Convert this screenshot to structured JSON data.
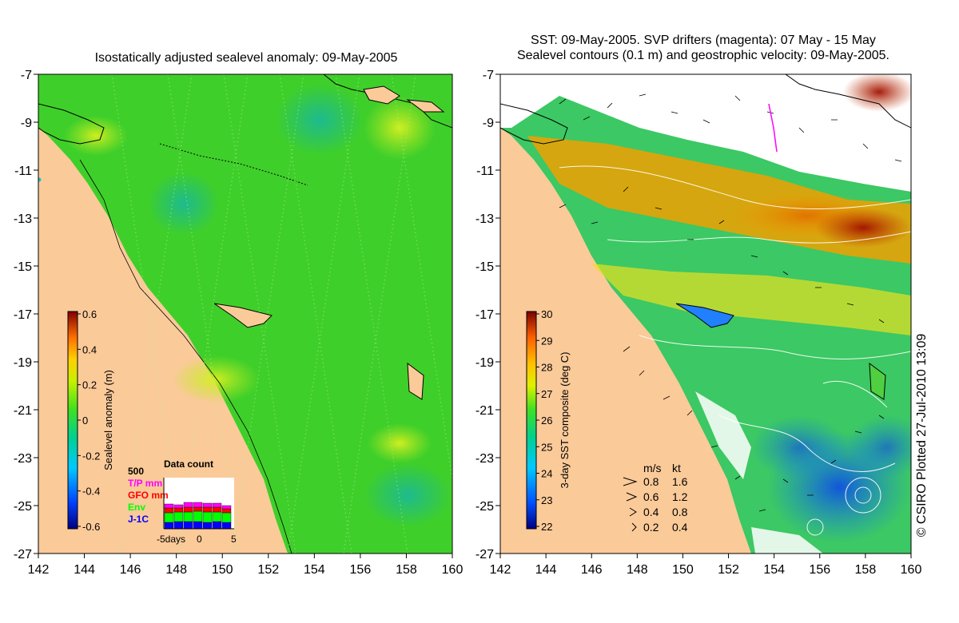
{
  "left_panel": {
    "title": "Isostatically adjusted sealevel anomaly: 09-May-2005",
    "colorbar": {
      "label": "Sealevel anomaly (m)",
      "ticks": [
        "0.6",
        "0.4",
        "0.2",
        "0",
        "-0.2",
        "-0.4",
        "-0.6"
      ],
      "range": [
        -0.6,
        0.6
      ]
    },
    "data_count": {
      "title": "Data count",
      "max_label": "500",
      "legend": [
        {
          "name": "T/P mm",
          "color": "#ff00ff"
        },
        {
          "name": "GFO mm",
          "color": "#ff0000"
        },
        {
          "name": "Env",
          "color": "#00ff00"
        },
        {
          "name": "J-1C",
          "color": "#0000ff"
        }
      ],
      "x_labels": [
        "-5days",
        "0",
        "5"
      ]
    }
  },
  "right_panel": {
    "title_line1": "SST: 09-May-2005. SVP drifters (magenta): 07 May - 15 May",
    "title_line2": "Sealevel contours (0.1 m) and geostrophic velocity: 09-May-2005.",
    "colorbar": {
      "label": "3-day SST composite (deg C)",
      "ticks": [
        "30",
        "29",
        "28",
        "27",
        "26",
        "25",
        "24",
        "23",
        "22"
      ],
      "range": [
        22,
        30
      ]
    },
    "velocity_key": {
      "header_ms": "m/s",
      "header_kt": "kt",
      "rows": [
        {
          "ms": "0.8",
          "kt": "1.6"
        },
        {
          "ms": "0.6",
          "kt": "1.2"
        },
        {
          "ms": "0.4",
          "kt": "0.8"
        },
        {
          "ms": "0.2",
          "kt": "0.4"
        }
      ]
    }
  },
  "axes": {
    "lon_labels": [
      "142",
      "144",
      "146",
      "148",
      "150",
      "152",
      "154",
      "156",
      "158",
      "160"
    ],
    "lat_labels": [
      "-7",
      "-9",
      "-11",
      "-13",
      "-15",
      "-17",
      "-19",
      "-21",
      "-23",
      "-25",
      "-27"
    ]
  },
  "copyright": "© CSIRO Plotted 27-Jul-2010 13:09",
  "colors": {
    "land": "#fbca99",
    "ocean_sla": "#3fcf2a",
    "no_data": "#ffffff"
  }
}
